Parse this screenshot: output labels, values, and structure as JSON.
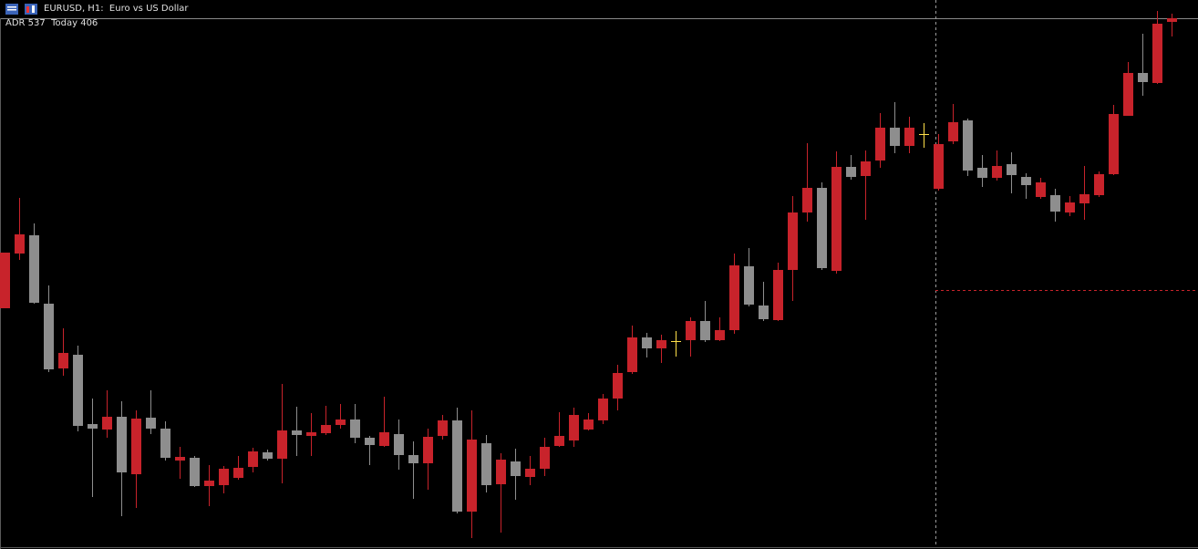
{
  "chart_data": {
    "type": "candlestick",
    "title": "EURUSD, H1:  Euro vs US Dollar",
    "indicator": "ADR 537  Today 406",
    "up_color": "#c8232b",
    "down_color": "#8e8e8e",
    "doji_color": "#ffe04a",
    "ylim": [
      0,
      600
    ],
    "open": [
      262,
      322,
      342,
      267,
      196,
      211,
      135,
      129,
      143,
      80,
      142,
      130,
      95,
      98,
      67,
      68,
      76,
      88,
      104,
      97,
      128,
      122,
      125,
      134,
      140,
      120,
      111,
      124,
      101,
      92,
      122,
      139,
      39,
      114,
      69,
      94,
      77,
      86,
      111,
      117,
      129,
      139,
      163,
      192,
      230,
      218,
      226,
      227,
      248,
      227,
      238,
      308,
      265,
      249,
      304,
      367,
      394,
      303,
      417,
      407,
      424,
      460,
      440,
      453,
      393,
      445,
      468,
      416,
      405,
      420,
      406,
      384,
      386,
      367,
      377,
      386,
      409,
      473,
      520,
      509,
      576
    ],
    "high": [
      323,
      383,
      355,
      287,
      240,
      221,
      163,
      172,
      160,
      150,
      172,
      138,
      110,
      100,
      90,
      89,
      100,
      109,
      107,
      179,
      154,
      147,
      155,
      157,
      157,
      122,
      165,
      140,
      116,
      130,
      145,
      153,
      150,
      123,
      103,
      108,
      100,
      120,
      148,
      153,
      147,
      168,
      200,
      243,
      235,
      233,
      237,
      252,
      270,
      252,
      322,
      328,
      291,
      312,
      385,
      443,
      400,
      434,
      430,
      435,
      476,
      488,
      472,
      465,
      453,
      486,
      470,
      430,
      435,
      433,
      410,
      405,
      393,
      385,
      418,
      412,
      485,
      532,
      563,
      588,
      585
    ],
    "low": [
      262,
      315,
      267,
      192,
      188,
      127,
      55,
      120,
      34,
      43,
      124,
      95,
      75,
      66,
      45,
      59,
      74,
      82,
      95,
      70,
      100,
      100,
      123,
      130,
      114,
      90,
      110,
      85,
      53,
      63,
      118,
      37,
      10,
      60,
      16,
      52,
      68,
      78,
      110,
      110,
      128,
      135,
      150,
      190,
      208,
      202,
      209,
      209,
      225,
      226,
      234,
      264,
      248,
      248,
      270,
      357,
      304,
      300,
      403,
      359,
      416,
      432,
      432,
      438,
      391,
      442,
      407,
      395,
      402,
      388,
      382,
      382,
      357,
      363,
      359,
      384,
      408,
      473,
      495,
      508,
      560
    ],
    "close": [
      323,
      343,
      268,
      195,
      213,
      133,
      130,
      143,
      82,
      141,
      130,
      98,
      99,
      67,
      73,
      86,
      87,
      105,
      97,
      128,
      123,
      126,
      134,
      140,
      120,
      112,
      126,
      101,
      92,
      121,
      139,
      39,
      118,
      68,
      96,
      78,
      86,
      110,
      122,
      145,
      140,
      163,
      191,
      230,
      218,
      227,
      226,
      248,
      227,
      238,
      309,
      266,
      250,
      304,
      367,
      394,
      306,
      417,
      406,
      423,
      460,
      440,
      460,
      453,
      442,
      466,
      413,
      405,
      418,
      408,
      397,
      400,
      368,
      378,
      387,
      409,
      475,
      520,
      510,
      574,
      580
    ]
  }
}
